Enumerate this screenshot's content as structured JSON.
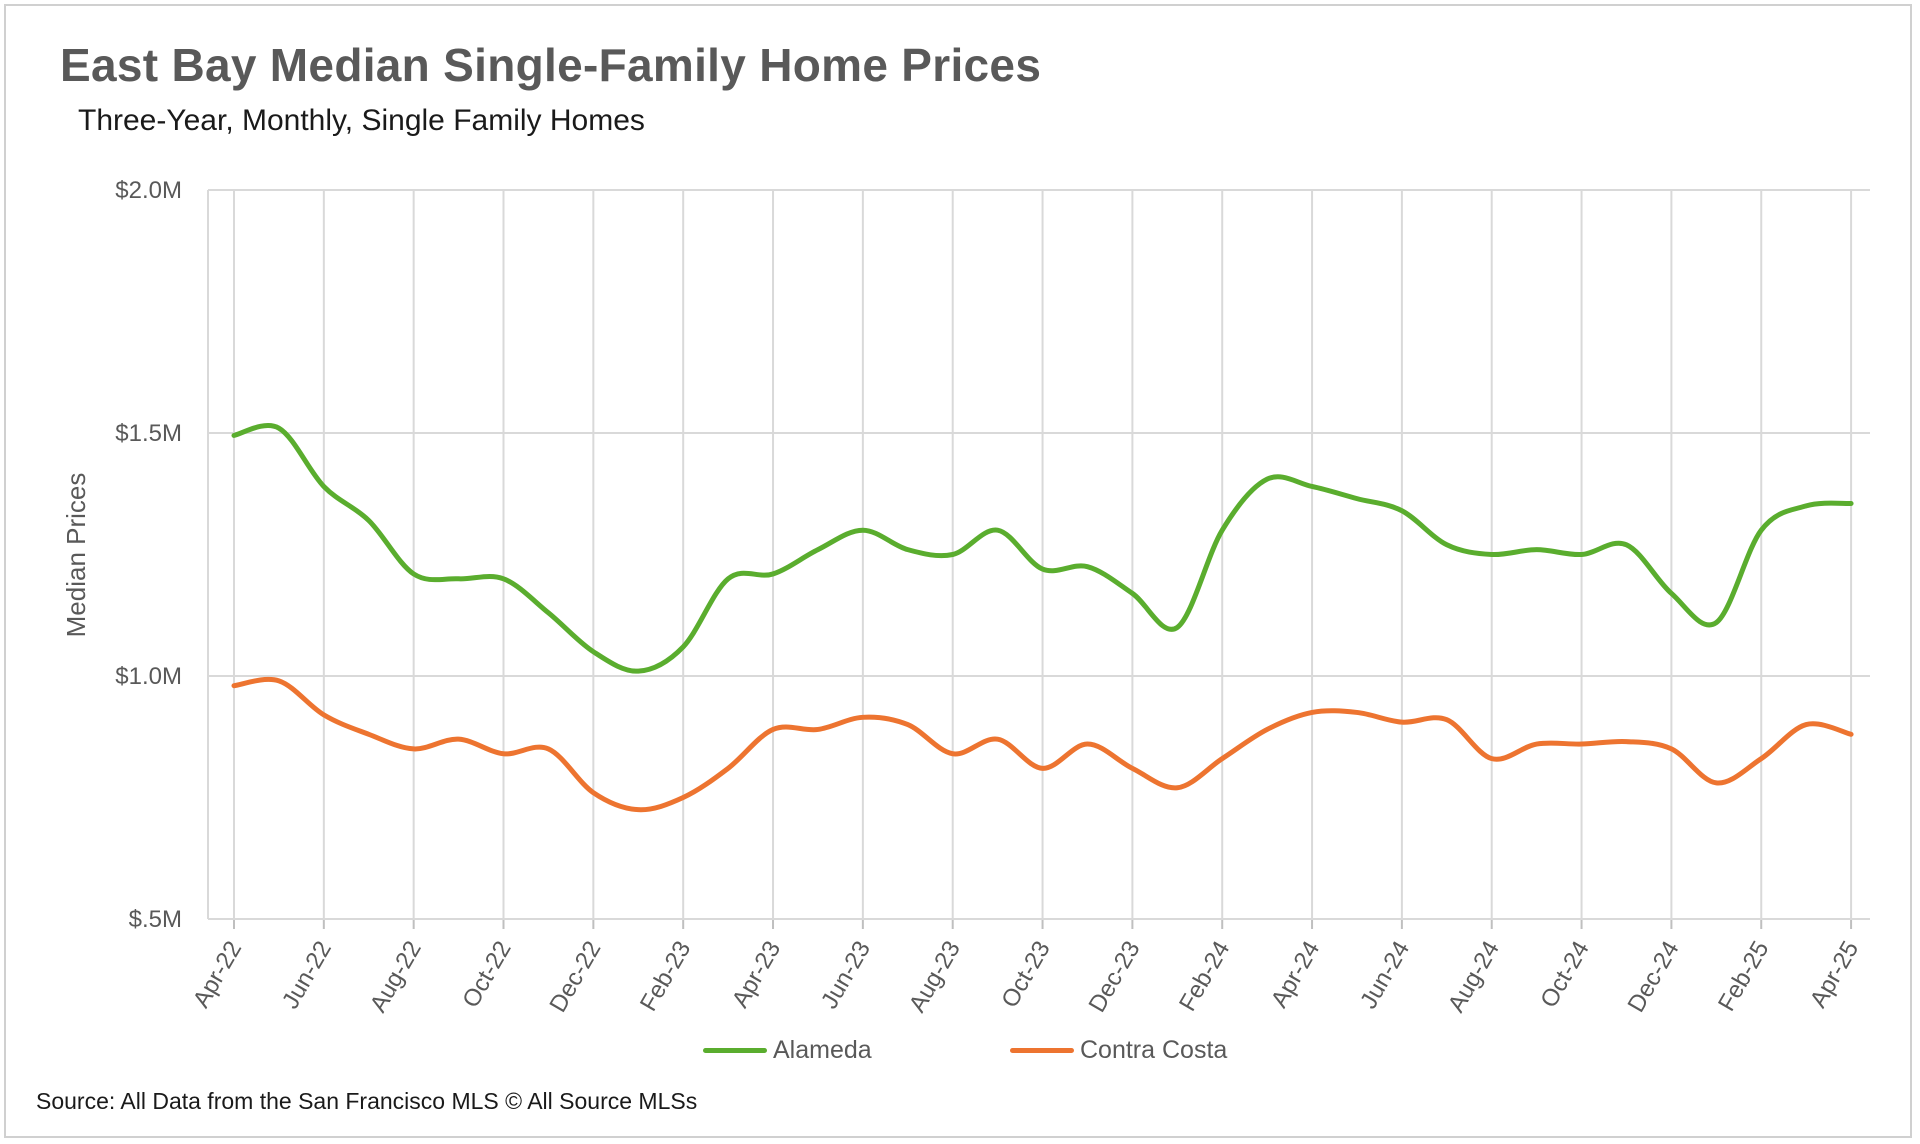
{
  "chart_data": {
    "type": "line",
    "title": "East Bay Median Single-Family Home Prices",
    "subtitle": "Three-Year, Monthly, Single Family Homes",
    "ylabel": "Median Prices",
    "xlabel": "",
    "source": "Source: All Data from the San Francisco MLS © All Source MLSs",
    "ylim": [
      0.5,
      2.0
    ],
    "y_ticks": [
      {
        "value": 2.0,
        "label": "$2.0M"
      },
      {
        "value": 1.5,
        "label": "$1.5M"
      },
      {
        "value": 1.0,
        "label": "$1.0M"
      },
      {
        "value": 0.5,
        "label": "$.5M"
      }
    ],
    "x": [
      "Apr-22",
      "May-22",
      "Jun-22",
      "Jul-22",
      "Aug-22",
      "Sep-22",
      "Oct-22",
      "Nov-22",
      "Dec-22",
      "Jan-23",
      "Feb-23",
      "Mar-23",
      "Apr-23",
      "May-23",
      "Jun-23",
      "Jul-23",
      "Aug-23",
      "Sep-23",
      "Oct-23",
      "Nov-23",
      "Dec-23",
      "Jan-24",
      "Feb-24",
      "Mar-24",
      "Apr-24",
      "May-24",
      "Jun-24",
      "Jul-24",
      "Aug-24",
      "Sep-24",
      "Oct-24",
      "Nov-24",
      "Dec-24",
      "Jan-25",
      "Feb-25",
      "Mar-25",
      "Apr-25"
    ],
    "x_tick_labels": [
      "Apr-22",
      "Jun-22",
      "Aug-22",
      "Oct-22",
      "Dec-22",
      "Feb-23",
      "Apr-23",
      "Jun-23",
      "Aug-23",
      "Oct-23",
      "Dec-23",
      "Feb-24",
      "Apr-24",
      "Jun-24",
      "Aug-24",
      "Oct-24",
      "Dec-24",
      "Feb-25",
      "Apr-25"
    ],
    "grid": true,
    "legend_position": "bottom",
    "series": [
      {
        "name": "Alameda",
        "color": "#5aad2e",
        "values": [
          1.495,
          1.51,
          1.39,
          1.32,
          1.21,
          1.2,
          1.2,
          1.13,
          1.05,
          1.01,
          1.06,
          1.2,
          1.21,
          1.26,
          1.3,
          1.26,
          1.25,
          1.3,
          1.22,
          1.225,
          1.17,
          1.1,
          1.3,
          1.405,
          1.39,
          1.365,
          1.34,
          1.27,
          1.25,
          1.26,
          1.25,
          1.27,
          1.17,
          1.11,
          1.3,
          1.35,
          1.355
        ]
      },
      {
        "name": "Contra Costa",
        "color": "#ed7430",
        "values": [
          0.98,
          0.99,
          0.92,
          0.88,
          0.85,
          0.87,
          0.84,
          0.85,
          0.76,
          0.725,
          0.75,
          0.81,
          0.89,
          0.89,
          0.915,
          0.9,
          0.84,
          0.87,
          0.81,
          0.86,
          0.81,
          0.77,
          0.83,
          0.89,
          0.925,
          0.925,
          0.905,
          0.91,
          0.83,
          0.86,
          0.86,
          0.865,
          0.85,
          0.78,
          0.83,
          0.9,
          0.88
        ]
      }
    ]
  }
}
